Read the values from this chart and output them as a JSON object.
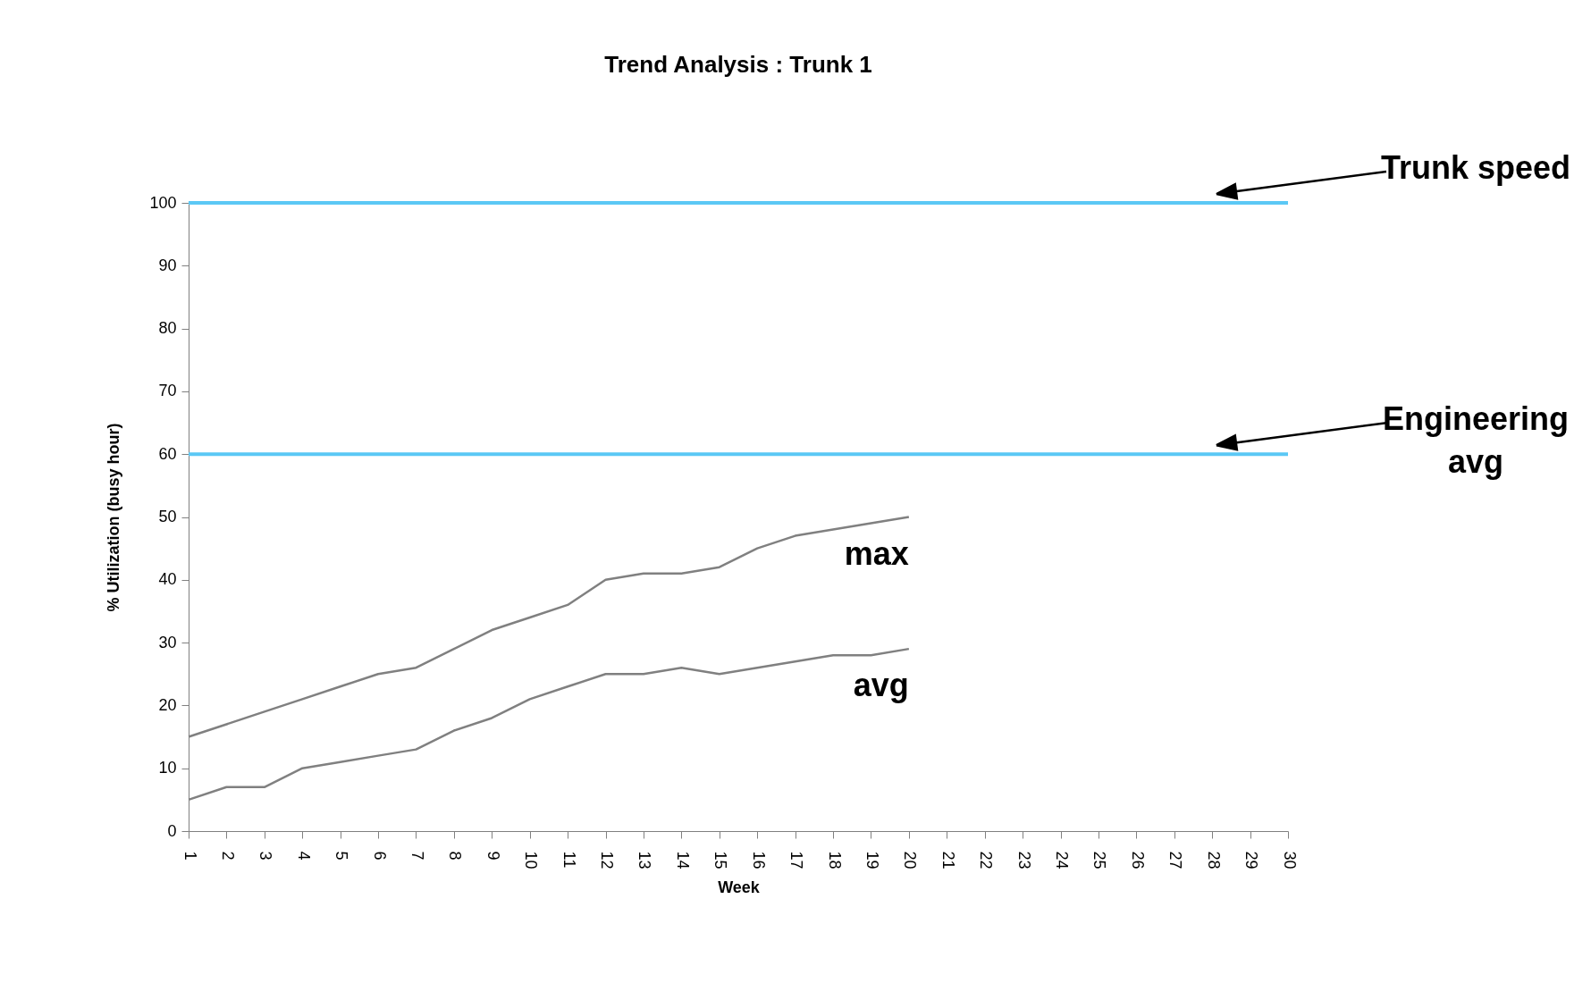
{
  "chart_data": {
    "type": "line",
    "title": "Trend  Analysis  :  Trunk  1",
    "xlabel": "Week",
    "ylabel": "%  Utilization  (busy  hour)",
    "x": [
      1,
      2,
      3,
      4,
      5,
      6,
      7,
      8,
      9,
      10,
      11,
      12,
      13,
      14,
      15,
      16,
      17,
      18,
      19,
      20
    ],
    "series": [
      {
        "name": "max",
        "color": "#808080",
        "values": [
          15,
          17,
          19,
          21,
          23,
          25,
          26,
          29,
          32,
          34,
          36,
          40,
          41,
          41,
          42,
          45,
          47,
          48,
          49,
          50
        ]
      },
      {
        "name": "avg",
        "color": "#808080",
        "values": [
          5,
          7,
          7,
          10,
          11,
          12,
          13,
          16,
          18,
          21,
          23,
          25,
          25,
          26,
          25,
          26,
          27,
          28,
          28,
          29
        ]
      }
    ],
    "ref_lines": [
      {
        "axis": "y",
        "value": 100,
        "label": "Trunk speed",
        "color": "#5bc8f5"
      },
      {
        "axis": "y",
        "value": 60,
        "label": "Engineering\navg",
        "color": "#5bc8f5"
      }
    ],
    "xlim": [
      1,
      30
    ],
    "xticks": [
      1,
      2,
      3,
      4,
      5,
      6,
      7,
      8,
      9,
      10,
      11,
      12,
      13,
      14,
      15,
      16,
      17,
      18,
      19,
      20,
      21,
      22,
      23,
      24,
      25,
      26,
      27,
      28,
      29,
      30
    ],
    "ylim": [
      0,
      100
    ],
    "yticks": [
      0,
      10,
      20,
      30,
      40,
      50,
      60,
      70,
      80,
      90,
      100
    ],
    "grid": false,
    "marker": "none",
    "line_style": "solid"
  }
}
